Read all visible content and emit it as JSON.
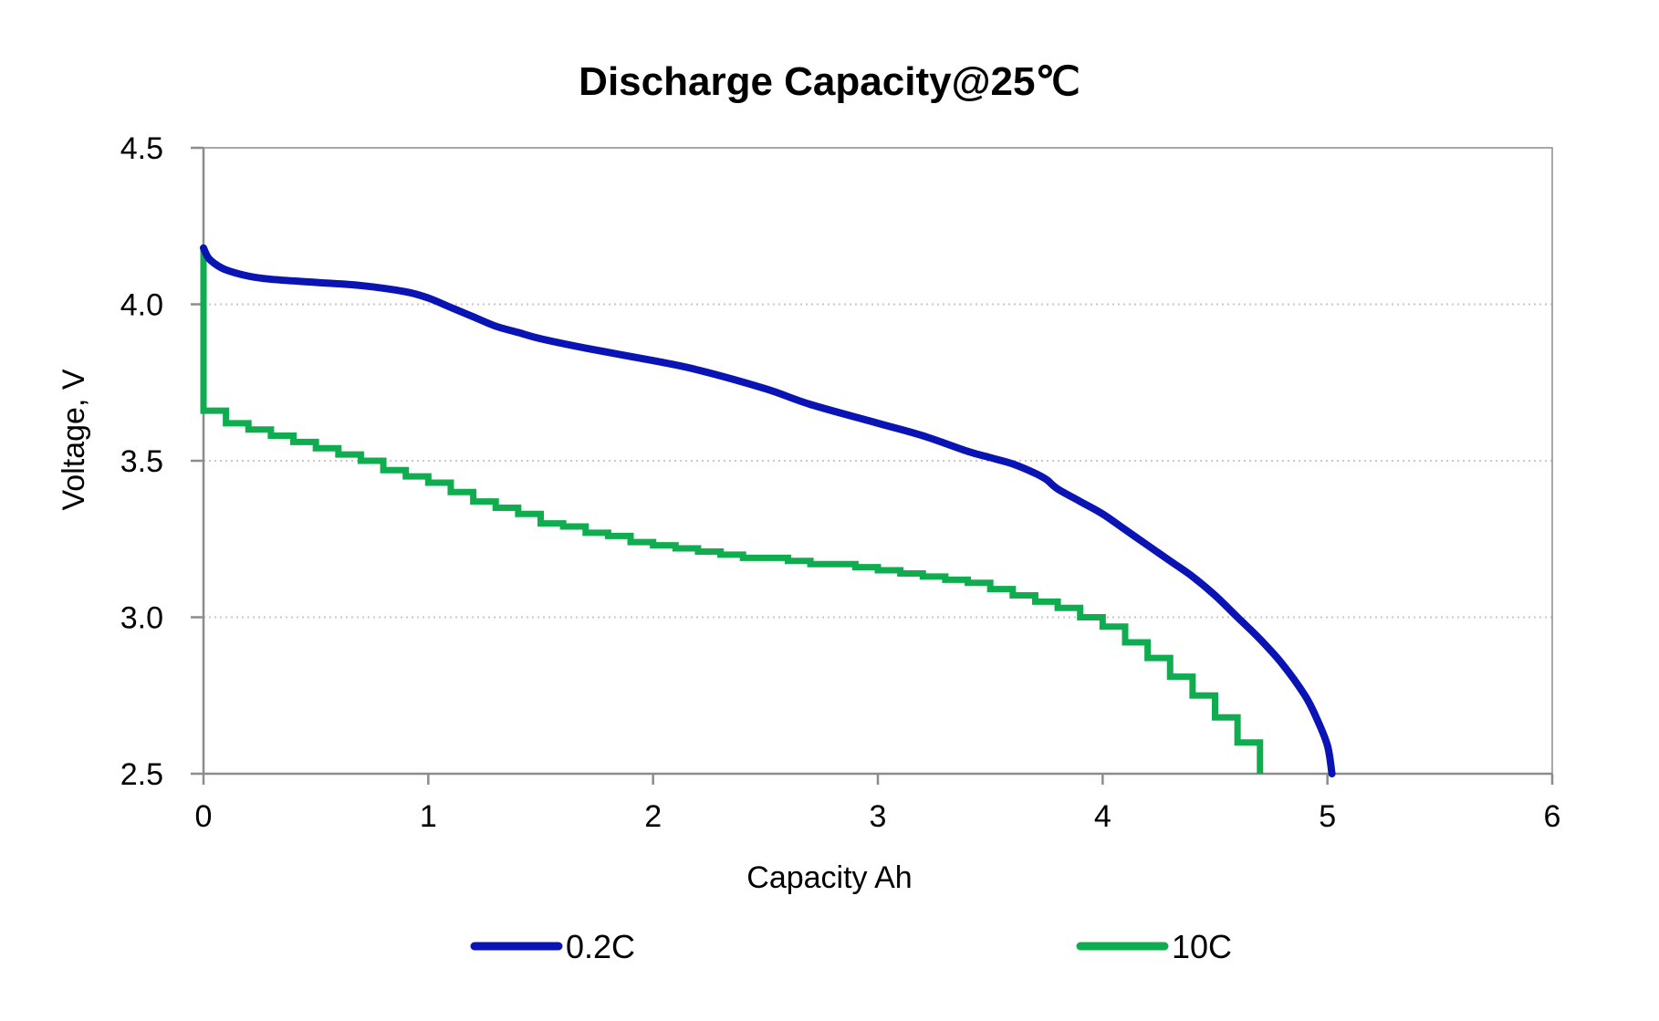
{
  "chart_data": {
    "type": "line",
    "title": "Discharge Capacity@25℃",
    "xlabel": "Capacity  Ah",
    "ylabel": "Voltage, V",
    "xlim": [
      0,
      6
    ],
    "ylim": [
      2.5,
      4.5
    ],
    "x_ticks": [
      "0",
      "1",
      "2",
      "3",
      "4",
      "5",
      "6"
    ],
    "y_ticks": [
      "2.5",
      "3.0",
      "3.5",
      "4.0",
      "4.5"
    ],
    "grid": "horizontal dotted",
    "legend_position": "bottom",
    "series": [
      {
        "name": "0.2C",
        "color": "#0a14b4",
        "points": [
          [
            0.0,
            4.18
          ],
          [
            0.02,
            4.15
          ],
          [
            0.05,
            4.13
          ],
          [
            0.1,
            4.11
          ],
          [
            0.2,
            4.09
          ],
          [
            0.3,
            4.08
          ],
          [
            0.5,
            4.07
          ],
          [
            0.7,
            4.06
          ],
          [
            0.9,
            4.04
          ],
          [
            1.0,
            4.02
          ],
          [
            1.1,
            3.99
          ],
          [
            1.2,
            3.96
          ],
          [
            1.3,
            3.93
          ],
          [
            1.4,
            3.91
          ],
          [
            1.5,
            3.89
          ],
          [
            1.7,
            3.86
          ],
          [
            2.0,
            3.82
          ],
          [
            2.2,
            3.79
          ],
          [
            2.5,
            3.73
          ],
          [
            2.7,
            3.68
          ],
          [
            3.0,
            3.62
          ],
          [
            3.2,
            3.58
          ],
          [
            3.4,
            3.53
          ],
          [
            3.5,
            3.51
          ],
          [
            3.6,
            3.49
          ],
          [
            3.7,
            3.46
          ],
          [
            3.75,
            3.44
          ],
          [
            3.8,
            3.41
          ],
          [
            3.9,
            3.37
          ],
          [
            4.0,
            3.33
          ],
          [
            4.1,
            3.28
          ],
          [
            4.2,
            3.23
          ],
          [
            4.3,
            3.18
          ],
          [
            4.4,
            3.13
          ],
          [
            4.5,
            3.07
          ],
          [
            4.6,
            3.0
          ],
          [
            4.7,
            2.93
          ],
          [
            4.8,
            2.85
          ],
          [
            4.9,
            2.75
          ],
          [
            4.95,
            2.68
          ],
          [
            5.0,
            2.59
          ],
          [
            5.02,
            2.5
          ]
        ]
      },
      {
        "name": "10C",
        "color": "#0fad4f",
        "steps": [
          [
            0.0,
            3.66
          ],
          [
            0.1,
            3.62
          ],
          [
            0.2,
            3.6
          ],
          [
            0.3,
            3.58
          ],
          [
            0.4,
            3.56
          ],
          [
            0.5,
            3.54
          ],
          [
            0.6,
            3.52
          ],
          [
            0.7,
            3.5
          ],
          [
            0.8,
            3.47
          ],
          [
            0.9,
            3.45
          ],
          [
            1.0,
            3.43
          ],
          [
            1.1,
            3.4
          ],
          [
            1.2,
            3.37
          ],
          [
            1.3,
            3.35
          ],
          [
            1.4,
            3.33
          ],
          [
            1.5,
            3.3
          ],
          [
            1.6,
            3.29
          ],
          [
            1.7,
            3.27
          ],
          [
            1.8,
            3.26
          ],
          [
            1.9,
            3.24
          ],
          [
            2.0,
            3.23
          ],
          [
            2.1,
            3.22
          ],
          [
            2.2,
            3.21
          ],
          [
            2.3,
            3.2
          ],
          [
            2.4,
            3.19
          ],
          [
            2.5,
            3.19
          ],
          [
            2.6,
            3.18
          ],
          [
            2.7,
            3.17
          ],
          [
            2.8,
            3.17
          ],
          [
            2.9,
            3.16
          ],
          [
            3.0,
            3.15
          ],
          [
            3.1,
            3.14
          ],
          [
            3.2,
            3.13
          ],
          [
            3.3,
            3.12
          ],
          [
            3.4,
            3.11
          ],
          [
            3.5,
            3.09
          ],
          [
            3.6,
            3.07
          ],
          [
            3.7,
            3.05
          ],
          [
            3.8,
            3.03
          ],
          [
            3.9,
            3.0
          ],
          [
            4.0,
            2.97
          ],
          [
            4.1,
            2.92
          ],
          [
            4.2,
            2.87
          ],
          [
            4.3,
            2.81
          ],
          [
            4.4,
            2.75
          ],
          [
            4.5,
            2.68
          ],
          [
            4.6,
            2.6
          ],
          [
            4.7,
            2.5
          ]
        ],
        "initial_voltage": 4.18,
        "end_x": 4.7
      }
    ]
  }
}
